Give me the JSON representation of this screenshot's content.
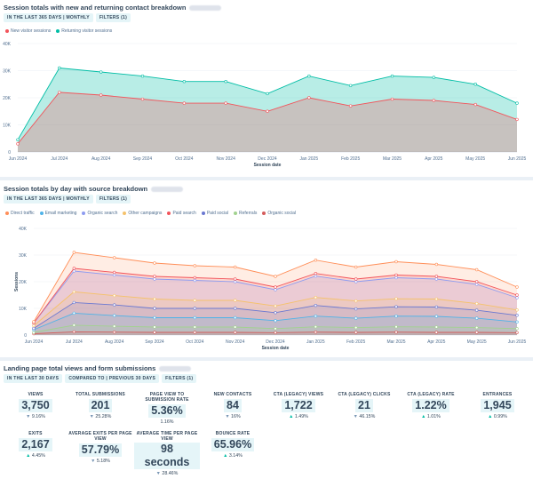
{
  "panel1": {
    "title": "Session totals with new and returning contact breakdown",
    "filters": [
      "IN THE LAST 365 DAYS | MONTHLY",
      "FILTERS (1)"
    ],
    "legend": [
      {
        "label": "New visitor sessions",
        "color": "#f2545b"
      },
      {
        "label": "Returning visitor sessions",
        "color": "#00bda5"
      }
    ]
  },
  "panel2": {
    "title": "Session totals by day with source breakdown",
    "filters": [
      "IN THE LAST 365 DAYS | MONTHLY",
      "FILTERS (1)"
    ],
    "legend": [
      {
        "label": "Direct traffic",
        "color": "#ff8f59"
      },
      {
        "label": "Email marketing",
        "color": "#4fb3e8"
      },
      {
        "label": "Organic search",
        "color": "#8e9cf0"
      },
      {
        "label": "Other campaigns",
        "color": "#f5c26b"
      },
      {
        "label": "Paid search",
        "color": "#f2545b"
      },
      {
        "label": "Paid social",
        "color": "#6a78d1"
      },
      {
        "label": "Referrals",
        "color": "#a2d28f"
      },
      {
        "label": "Organic social",
        "color": "#d45c5c"
      }
    ]
  },
  "panel3": {
    "title": "Landing page total views and form submissions",
    "filters": [
      "IN THE LAST 30 DAYS",
      "COMPARED TO | PREVIOUS 30 DAYS",
      "FILTERS (1)"
    ],
    "kpis_row1": [
      {
        "label": "VIEWS",
        "value": "3,750",
        "change": "9.16%",
        "dir": "down"
      },
      {
        "label": "TOTAL SUBMISSIONS",
        "value": "201",
        "change": "25.28%",
        "dir": "down"
      },
      {
        "label": "PAGE VIEW TO SUBMISSION RATE",
        "value": "5.36%",
        "change": "1.16%",
        "dir": "none"
      },
      {
        "label": "NEW CONTACTS",
        "value": "84",
        "change": "16%",
        "dir": "down"
      },
      {
        "label": "CTA (LEGACY) VIEWS",
        "value": "1,722",
        "change": "1.49%",
        "dir": "up"
      },
      {
        "label": "CTA (LEGACY) CLICKS",
        "value": "21",
        "change": "46.15%",
        "dir": "down"
      },
      {
        "label": "CTA (LEGACY) RATE",
        "value": "1.22%",
        "change": "1.01%",
        "dir": "up"
      },
      {
        "label": "ENTRANCES",
        "value": "1,945",
        "change": "0.99%",
        "dir": "up"
      }
    ],
    "kpis_row2": [
      {
        "label": "EXITS",
        "value": "2,167",
        "change": "4.45%",
        "dir": "up"
      },
      {
        "label": "AVERAGE EXITS PER PAGE VIEW",
        "value": "57.79%",
        "change": "5.18%",
        "dir": "down"
      },
      {
        "label": "AVERAGE TIME PER PAGE VIEW",
        "value": "98 seconds",
        "change": "28.46%",
        "dir": "down"
      },
      {
        "label": "BOUNCE RATE",
        "value": "65.96%",
        "change": "3.14%",
        "dir": "up"
      }
    ]
  },
  "chart_data": [
    {
      "type": "area",
      "title": "Session totals with new and returning contact breakdown",
      "xlabel": "Session date",
      "ylabel": "",
      "ylim": [
        0,
        40000
      ],
      "yticks": [
        "0",
        "10K",
        "20K",
        "30K",
        "40K"
      ],
      "categories": [
        "Jun 2024",
        "Jul 2024",
        "Aug 2024",
        "Sep 2024",
        "Oct 2024",
        "Nov 2024",
        "Dec 2024",
        "Jan 2025",
        "Feb 2025",
        "Mar 2025",
        "Apr 2025",
        "May 2025",
        "Jun 2025"
      ],
      "series": [
        {
          "name": "New visitor sessions",
          "color": "#f2545b",
          "values": [
            3000,
            22000,
            21000,
            19500,
            18000,
            18000,
            15000,
            20000,
            17000,
            19500,
            19000,
            17500,
            12000
          ]
        },
        {
          "name": "Returning visitor sessions",
          "color": "#00bda5",
          "values": [
            1500,
            9000,
            8500,
            8500,
            8000,
            8000,
            6500,
            8000,
            7500,
            8500,
            8500,
            7500,
            6000
          ]
        }
      ]
    },
    {
      "type": "area",
      "title": "Session totals by day with source breakdown",
      "xlabel": "Session date",
      "ylabel": "Sessions",
      "ylim": [
        0,
        40000
      ],
      "yticks": [
        "0",
        "10K",
        "20K",
        "30K",
        "40K"
      ],
      "categories": [
        "Jun 2024",
        "Jul 2024",
        "Aug 2024",
        "Sep 2024",
        "Oct 2024",
        "Nov 2024",
        "Dec 2024",
        "Jan 2025",
        "Feb 2025",
        "Mar 2025",
        "Apr 2025",
        "May 2025",
        "Jun 2025"
      ],
      "series": [
        {
          "name": "Organic social",
          "color": "#d45c5c",
          "values": [
            500,
            1200,
            1100,
            1000,
            1000,
            1000,
            900,
            1100,
            1000,
            1100,
            1000,
            1000,
            900
          ]
        },
        {
          "name": "Referrals",
          "color": "#a2d28f",
          "values": [
            500,
            2500,
            2200,
            2000,
            2000,
            2000,
            1500,
            2000,
            1800,
            2000,
            2000,
            1800,
            1500
          ]
        },
        {
          "name": "Email marketing",
          "color": "#4fb3e8",
          "values": [
            1000,
            4500,
            4000,
            3500,
            3500,
            3500,
            3000,
            4000,
            3500,
            4000,
            4000,
            3500,
            2500
          ]
        },
        {
          "name": "Paid social",
          "color": "#6a78d1",
          "values": [
            500,
            4000,
            4000,
            3500,
            3500,
            3500,
            3000,
            4000,
            3500,
            3500,
            3500,
            3000,
            2500
          ]
        },
        {
          "name": "Other campaigns",
          "color": "#f5c26b",
          "values": [
            1000,
            4000,
            3500,
            3500,
            3000,
            3000,
            2500,
            3000,
            3000,
            3000,
            3000,
            2500,
            2000
          ]
        },
        {
          "name": "Organic search",
          "color": "#8e9cf0",
          "values": [
            1000,
            7800,
            7700,
            7500,
            7500,
            7000,
            6100,
            8000,
            7200,
            7900,
            7500,
            7200,
            4600
          ]
        },
        {
          "name": "Paid search",
          "color": "#f2545b",
          "values": [
            0,
            1000,
            1000,
            1000,
            1000,
            1000,
            1000,
            1000,
            1000,
            1000,
            1000,
            1000,
            1000
          ]
        },
        {
          "name": "Direct traffic",
          "color": "#ff8f59",
          "values": [
            500,
            6000,
            5500,
            5000,
            4500,
            4500,
            4000,
            5000,
            4500,
            5000,
            4500,
            4500,
            3000
          ]
        }
      ]
    }
  ]
}
